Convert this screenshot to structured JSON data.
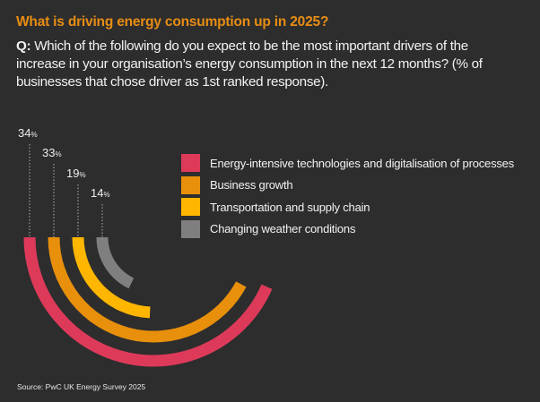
{
  "header": {
    "title": "What is driving energy consumption up in 2025?",
    "question_prefix": "Q:",
    "question_text": "Which of the following do you expect to be the most important drivers of the increase in your organisation’s energy consumption in the next 12 months? (% of businesses that chose driver as 1st ranked response)."
  },
  "chart_data": {
    "type": "radial-bar",
    "title": "What is driving energy consumption up in 2025?",
    "unit": "%",
    "categories": [
      "Energy-intensive technologies and digitalisation of processes",
      "Business growth",
      "Transportation and supply chain",
      "Changing weather conditions"
    ],
    "values": [
      34,
      33,
      19,
      14
    ],
    "colors": [
      "#dd3a5a",
      "#e8900c",
      "#ffb600",
      "#7f7f7f"
    ],
    "legend_position": "right",
    "grid": false
  },
  "legend": {
    "items": [
      {
        "label": "Energy-intensive technologies and digitalisation of processes",
        "color": "#dd3a5a"
      },
      {
        "label": "Business growth",
        "color": "#e8900c"
      },
      {
        "label": "Transportation and supply chain",
        "color": "#ffb600"
      },
      {
        "label": "Changing weather conditions",
        "color": "#7f7f7f"
      }
    ]
  },
  "footer": {
    "source": "Source: PwC UK Energy Survey 2025"
  }
}
